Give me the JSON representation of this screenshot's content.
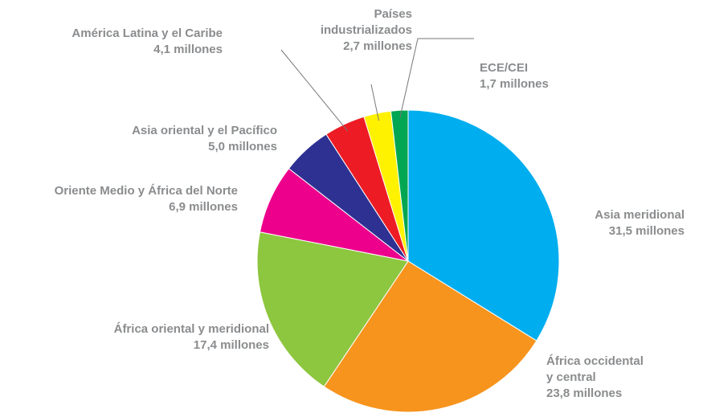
{
  "chart_data": {
    "type": "pie",
    "categories": [
      "Asia meridional",
      "África occidental\ny central",
      "África oriental y meridional",
      "Oriente Medio y África del Norte",
      "Asia oriental y el Pacífico",
      "América Latina y el Caribe",
      "Países\nindustrializados",
      "ECE/CEI"
    ],
    "values": [
      31.5,
      23.8,
      17.4,
      6.9,
      5.0,
      4.1,
      2.7,
      1.7
    ],
    "value_labels": [
      "31,5 millones",
      "23,8 millones",
      "17,4 millones",
      "6,9 millones",
      "5,0 millones",
      "4,1 millones",
      "2,7 millones",
      "1,7 millones"
    ],
    "colors": [
      "#00aeef",
      "#f7941d",
      "#8dc63f",
      "#ec008c",
      "#2e3192",
      "#ed1c24",
      "#fff200",
      "#00a651"
    ]
  }
}
